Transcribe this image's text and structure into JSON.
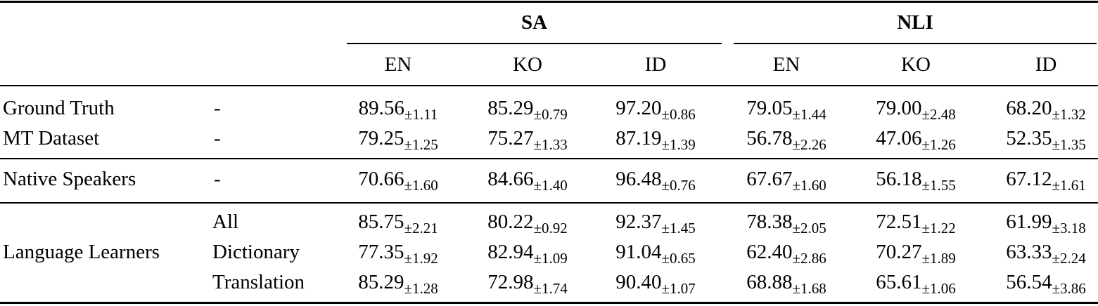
{
  "table": {
    "groups": [
      {
        "label": "SA"
      },
      {
        "label": "NLI"
      }
    ],
    "columns": [
      "EN",
      "KO",
      "ID",
      "EN",
      "KO",
      "ID"
    ],
    "rows": [
      {
        "label": "Ground Truth",
        "sub": "-",
        "cells": [
          {
            "v": "89.56",
            "e": "±1.11"
          },
          {
            "v": "85.29",
            "e": "±0.79"
          },
          {
            "v": "97.20",
            "e": "±0.86"
          },
          {
            "v": "79.05",
            "e": "±1.44"
          },
          {
            "v": "79.00",
            "e": "±2.48"
          },
          {
            "v": "68.20",
            "e": "±1.32"
          }
        ]
      },
      {
        "label": "MT Dataset",
        "sub": "-",
        "cells": [
          {
            "v": "79.25",
            "e": "±1.25"
          },
          {
            "v": "75.27",
            "e": "±1.33"
          },
          {
            "v": "87.19",
            "e": "±1.39"
          },
          {
            "v": "56.78",
            "e": "±2.26"
          },
          {
            "v": "47.06",
            "e": "±1.26"
          },
          {
            "v": "52.35",
            "e": "±1.35"
          }
        ]
      },
      {
        "label": "Native Speakers",
        "sub": "-",
        "cells": [
          {
            "v": "70.66",
            "e": "±1.60"
          },
          {
            "v": "84.66",
            "e": "±1.40"
          },
          {
            "v": "96.48",
            "e": "±0.76"
          },
          {
            "v": "67.67",
            "e": "±1.60"
          },
          {
            "v": "56.18",
            "e": "±1.55"
          },
          {
            "v": "67.12",
            "e": "±1.61"
          }
        ]
      },
      {
        "label": "",
        "sub": "All",
        "cells": [
          {
            "v": "85.75",
            "e": "±2.21"
          },
          {
            "v": "80.22",
            "e": "±0.92"
          },
          {
            "v": "92.37",
            "e": "±1.45"
          },
          {
            "v": "78.38",
            "e": "±2.05"
          },
          {
            "v": "72.51",
            "e": "±1.22"
          },
          {
            "v": "61.99",
            "e": "±3.18"
          }
        ]
      },
      {
        "label": "Language Learners",
        "sub": "Dictionary",
        "cells": [
          {
            "v": "77.35",
            "e": "±1.92"
          },
          {
            "v": "82.94",
            "e": "±1.09"
          },
          {
            "v": "91.04",
            "e": "±0.65"
          },
          {
            "v": "62.40",
            "e": "±2.86"
          },
          {
            "v": "70.27",
            "e": "±1.89"
          },
          {
            "v": "63.33",
            "e": "±2.24"
          }
        ]
      },
      {
        "label": "",
        "sub": "Translation",
        "cells": [
          {
            "v": "85.29",
            "e": "±1.28"
          },
          {
            "v": "72.98",
            "e": "±1.74"
          },
          {
            "v": "90.40",
            "e": "±1.07"
          },
          {
            "v": "68.88",
            "e": "±1.68"
          },
          {
            "v": "65.61",
            "e": "±1.06"
          },
          {
            "v": "56.54",
            "e": "±3.86"
          }
        ]
      }
    ]
  }
}
